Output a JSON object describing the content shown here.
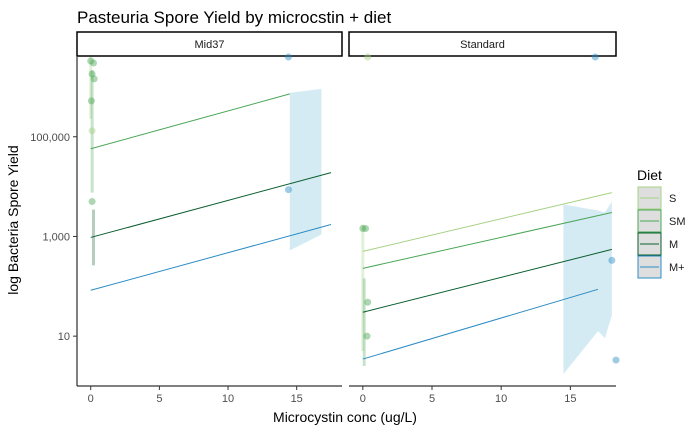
{
  "chart_data": {
    "type": "scatter",
    "title": "Pasteuria Spore Yield by microcstin + diet",
    "xlabel": "Microcystin conc (ug/L)",
    "ylabel": "log Bacteria Spore Yield",
    "xlim": [
      -1,
      18.3
    ],
    "ylim_log10": [
      0.5,
      3.8
    ],
    "x_ticks": [
      0,
      5,
      10,
      15
    ],
    "x_tick_labels": [
      "0",
      "5",
      "10",
      "15"
    ],
    "y_ticks": [
      1,
      2,
      3
    ],
    "y_tick_labels": [
      "10",
      "1,000",
      "100,000"
    ],
    "log_scale": true,
    "grid": false,
    "legend_position": "right",
    "legend_title": "Diet",
    "series": [
      {
        "name": "S",
        "color": "#a6d184"
      },
      {
        "name": "SM",
        "color": "#4aa655"
      },
      {
        "name": "M",
        "color": "#0b5d2e"
      },
      {
        "name": "M+",
        "color": "#2b8cc4"
      }
    ],
    "facets": [
      {
        "label": "Mid37",
        "lines": [
          {
            "series": "SM",
            "x": [
              0,
              14.5
            ],
            "y": [
              2.88,
              3.43
            ]
          },
          {
            "series": "M",
            "x": [
              0,
              17.5
            ],
            "y": [
              1.99,
              2.64
            ]
          },
          {
            "series": "M+",
            "x": [
              0,
              17.5
            ],
            "y": [
              1.46,
              2.12
            ]
          }
        ],
        "ribbons": [
          {
            "series": "M+",
            "x": [
              14.5,
              16.8
            ],
            "lower": [
              1.86,
              2.02
            ],
            "upper": [
              3.44,
              3.48
            ]
          }
        ],
        "vlines": [
          {
            "series": "S",
            "x": 0,
            "y": [
              3.18,
              4.2
            ]
          },
          {
            "series": "SM",
            "x": 0.1,
            "y": [
              2.44,
              3.67
            ]
          },
          {
            "series": "M",
            "x": 0.2,
            "y": [
              1.71,
              2.27
            ]
          }
        ],
        "points": [
          {
            "series": "SM",
            "x": 0,
            "y": 3.76
          },
          {
            "series": "SM",
            "x": 0.1,
            "y": 3.63
          },
          {
            "series": "SM",
            "x": 0.2,
            "y": 3.74
          },
          {
            "series": "SM",
            "x": 0.25,
            "y": 3.58
          },
          {
            "series": "SM",
            "x": 0.05,
            "y": 3.36
          },
          {
            "series": "SM",
            "x": 0.1,
            "y": 2.35
          },
          {
            "series": "S",
            "x": 0.1,
            "y": 3.06
          },
          {
            "series": "M+",
            "x": 14.4,
            "y": 3.88
          },
          {
            "series": "M+",
            "x": 14.4,
            "y": 2.47
          }
        ]
      },
      {
        "label": "Standard",
        "lines": [
          {
            "series": "S",
            "x": [
              0,
              18
            ],
            "y": [
              1.85,
              2.44
            ]
          },
          {
            "series": "SM",
            "x": [
              0,
              18
            ],
            "y": [
              1.68,
              2.24
            ]
          },
          {
            "series": "M",
            "x": [
              0,
              18
            ],
            "y": [
              1.24,
              1.87
            ]
          },
          {
            "series": "M+",
            "x": [
              0,
              17
            ],
            "y": [
              0.77,
              1.47
            ]
          }
        ],
        "ribbons": [
          {
            "series": "M+",
            "x": [
              14.5,
              17,
              17.5,
              18
            ],
            "lower": [
              0.62,
              1.05,
              0.98,
              1.21
            ],
            "upper": [
              2.32,
              2.26,
              2.24,
              2.35
            ]
          }
        ],
        "vlines": [
          {
            "series": "S",
            "x": 0,
            "y": [
              0.85,
              2.12
            ]
          },
          {
            "series": "SM",
            "x": 0.1,
            "y": [
              0.7,
              1.58
            ]
          }
        ],
        "points": [
          {
            "series": "S",
            "x": 0.35,
            "y": 4.25
          },
          {
            "series": "SM",
            "x": 0,
            "y": 2.08
          },
          {
            "series": "SM",
            "x": 0.2,
            "y": 2.08
          },
          {
            "series": "SM",
            "x": 0.35,
            "y": 1.34
          },
          {
            "series": "SM",
            "x": 0.3,
            "y": 1.0
          },
          {
            "series": "M+",
            "x": 16.8,
            "y": 3.98
          },
          {
            "series": "M+",
            "x": 18,
            "y": 1.76
          },
          {
            "series": "M+",
            "x": 18.3,
            "y": 0.76
          }
        ]
      }
    ]
  }
}
